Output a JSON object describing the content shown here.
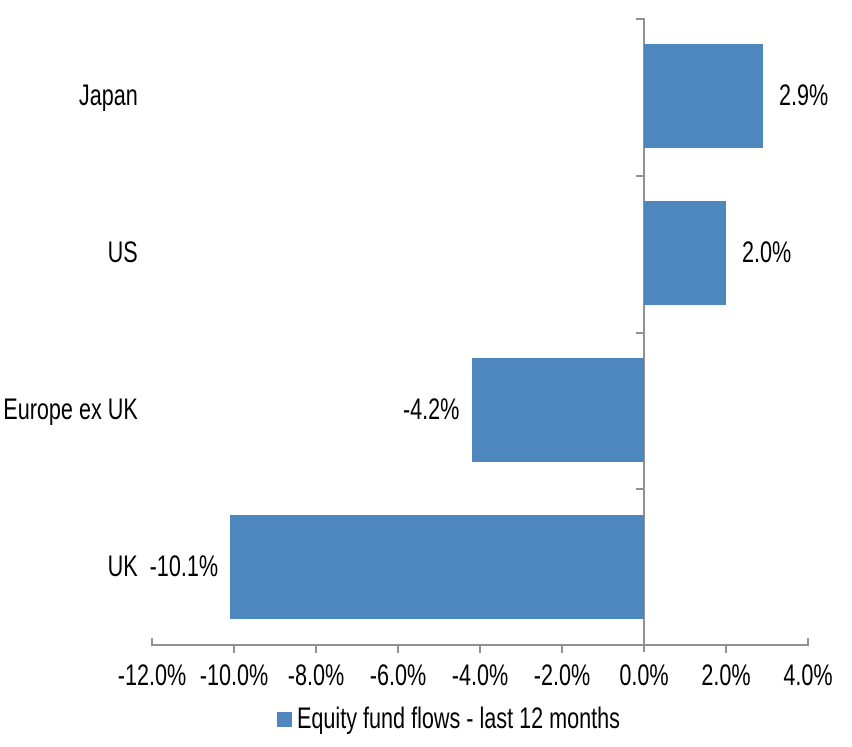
{
  "chart_data": {
    "type": "bar",
    "orientation": "horizontal",
    "categories": [
      "Japan",
      "US",
      "Europe ex UK",
      "UK"
    ],
    "series": [
      {
        "name": "Equity fund flows - last 12 months",
        "values": [
          2.9,
          2.0,
          -4.2,
          -10.1
        ]
      }
    ],
    "value_labels": [
      "2.9%",
      "2.0%",
      "-4.2%",
      "-10.1%"
    ],
    "xlim": [
      -12,
      4
    ],
    "x_tick_values": [
      -12,
      -10,
      -8,
      -6,
      -4,
      -2,
      0,
      2,
      4
    ],
    "x_tick_labels": [
      "-12.0%",
      "-10.0%",
      "-8.0%",
      "-6.0%",
      "-4.0%",
      "-2.0%",
      "0.0%",
      "2.0%",
      "4.0%"
    ],
    "grid": false,
    "legend_position": "bottom",
    "colors": {
      "bar": "#4e86be",
      "axis": "#919191",
      "text": "#000000",
      "background": "#ffffff"
    }
  }
}
